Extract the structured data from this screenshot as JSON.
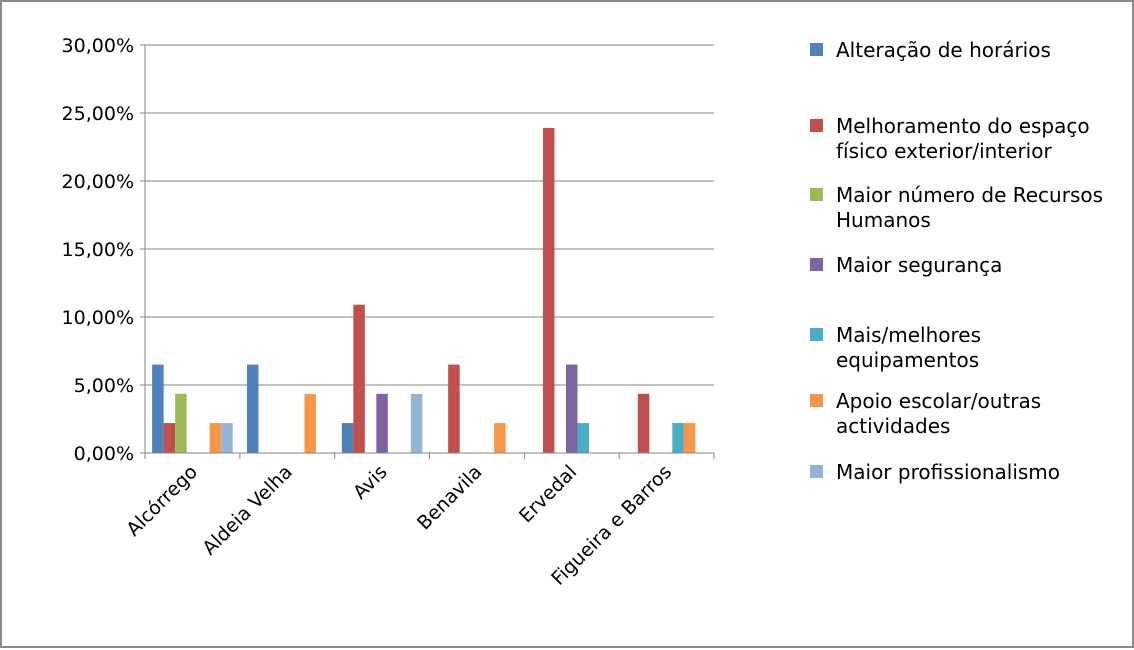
{
  "chart_data": {
    "type": "bar",
    "categories": [
      "Alcórrego",
      "Aldeia Velha",
      "Avis",
      "Benavila",
      "Ervedal",
      "Figueira e Barros"
    ],
    "series": [
      {
        "name": "Alteração de horários",
        "color": "#4F81BD",
        "values": [
          6.5,
          6.5,
          2.2,
          0,
          0,
          0
        ]
      },
      {
        "name": "Melhoramento do espaço físico exterior/interior",
        "color": "#C0504D",
        "values": [
          2.2,
          0,
          10.9,
          6.5,
          23.9,
          4.35
        ]
      },
      {
        "name": "Maior número de Recursos Humanos",
        "color": "#9BBB59",
        "values": [
          4.35,
          0,
          0,
          0,
          0,
          0
        ]
      },
      {
        "name": "Maior segurança",
        "color": "#8064A2",
        "values": [
          0,
          0,
          4.35,
          0,
          6.5,
          0
        ]
      },
      {
        "name": "Mais/melhores equipamentos",
        "color": "#4BACC6",
        "values": [
          0,
          0,
          0,
          0,
          2.2,
          2.2
        ]
      },
      {
        "name": "Apoio escolar/outras actividades",
        "color": "#F79646",
        "values": [
          2.2,
          4.35,
          0,
          2.2,
          0,
          2.2
        ]
      },
      {
        "name": "Maior profissionalismo",
        "color": "#95B3D7",
        "values": [
          2.2,
          0,
          4.35,
          0,
          0,
          0
        ]
      }
    ],
    "ylim": [
      0,
      30
    ],
    "yticks": [
      "0,00%",
      "5,00%",
      "10,00%",
      "15,00%",
      "20,00%",
      "25,00%",
      "30,00%"
    ],
    "grid": true,
    "legend": {
      "position": "right",
      "entries": [
        {
          "lines": [
            "Alteração de horários"
          ]
        },
        {
          "lines": [
            "Melhoramento do espaço",
            "físico exterior/interior"
          ]
        },
        {
          "lines": [
            "Maior número de Recursos",
            "Humanos"
          ]
        },
        {
          "lines": [
            "Maior segurança"
          ]
        },
        {
          "lines": [
            "Mais/melhores",
            "equipamentos"
          ]
        },
        {
          "lines": [
            "Apoio escolar/outras",
            "actividades"
          ]
        },
        {
          "lines": [
            "Maior profissionalismo"
          ]
        }
      ]
    }
  }
}
